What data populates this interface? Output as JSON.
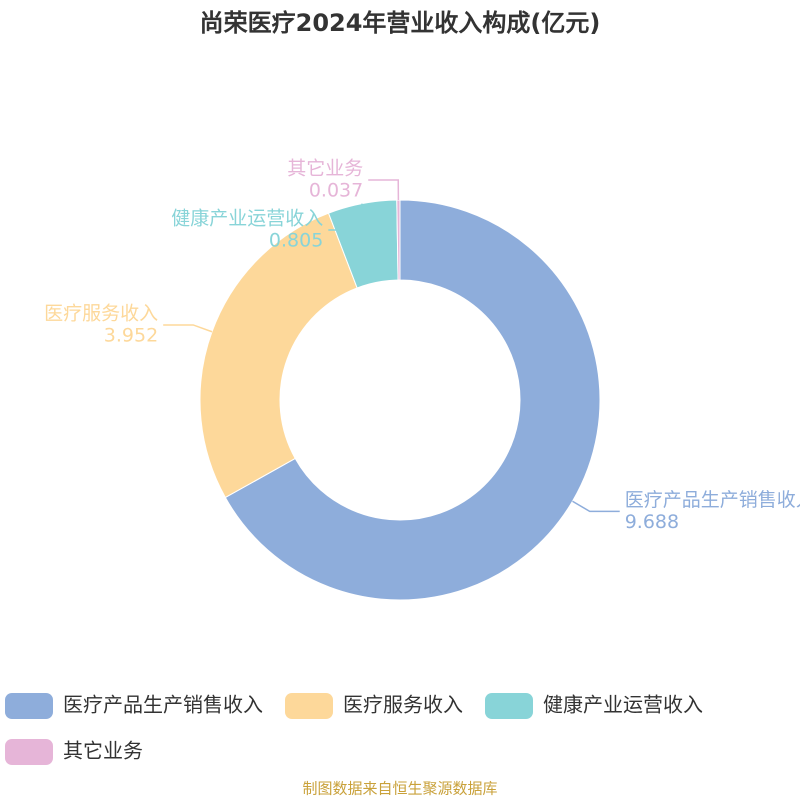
{
  "chart_data": {
    "type": "donut",
    "title": "尚荣医疗2024年营业收入构成(亿元)",
    "categories": [
      "医疗产品生产销售收入",
      "医疗服务收入",
      "健康产业运营收入",
      "其它业务"
    ],
    "values": [
      9.688,
      3.952,
      0.805,
      0.037
    ],
    "colors": [
      "#8eaddb",
      "#fdd89a",
      "#88d4d8",
      "#e6b5d8"
    ],
    "legend": "bottom",
    "source": "制图数据来自恒生聚源数据库"
  }
}
